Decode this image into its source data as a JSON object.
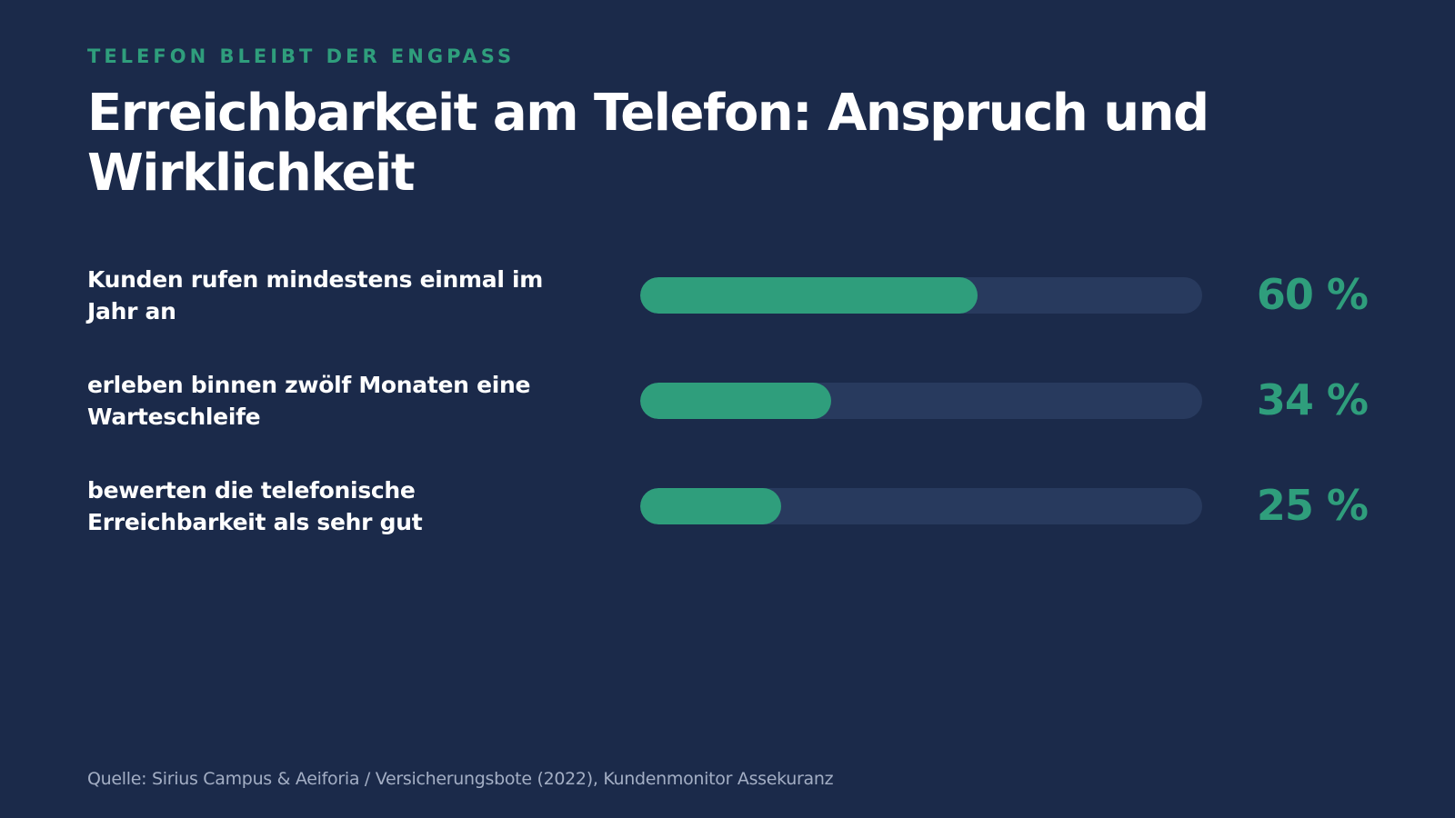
{
  "eyebrow": "TELEFON BLEIBT DER ENGPASS",
  "title": "Erreichbarkeit am Telefon: Anspruch und Wirklichkeit",
  "source": "Quelle: Sirius Campus & Aeiforia / Versicherungsbote (2022), Kundenmonitor Assekuranz",
  "colors": {
    "background": "#1b2a4a",
    "accent": "#2f9e7c",
    "track": "#283a5e",
    "text": "#ffffff",
    "muted": "#a3aec4"
  },
  "chart_data": {
    "type": "bar",
    "orientation": "horizontal",
    "xlim": [
      0,
      100
    ],
    "unit": "%",
    "categories": [
      "Kunden rufen mindestens einmal im Jahr an",
      "erleben binnen zwölf Monaten eine Warteschleife",
      "bewerten die telefonische Erreichbarkeit als sehr gut"
    ],
    "values": [
      60,
      34,
      25
    ],
    "value_labels": [
      "60 %",
      "34 %",
      "25 %"
    ],
    "grid": false,
    "legend": "none"
  }
}
